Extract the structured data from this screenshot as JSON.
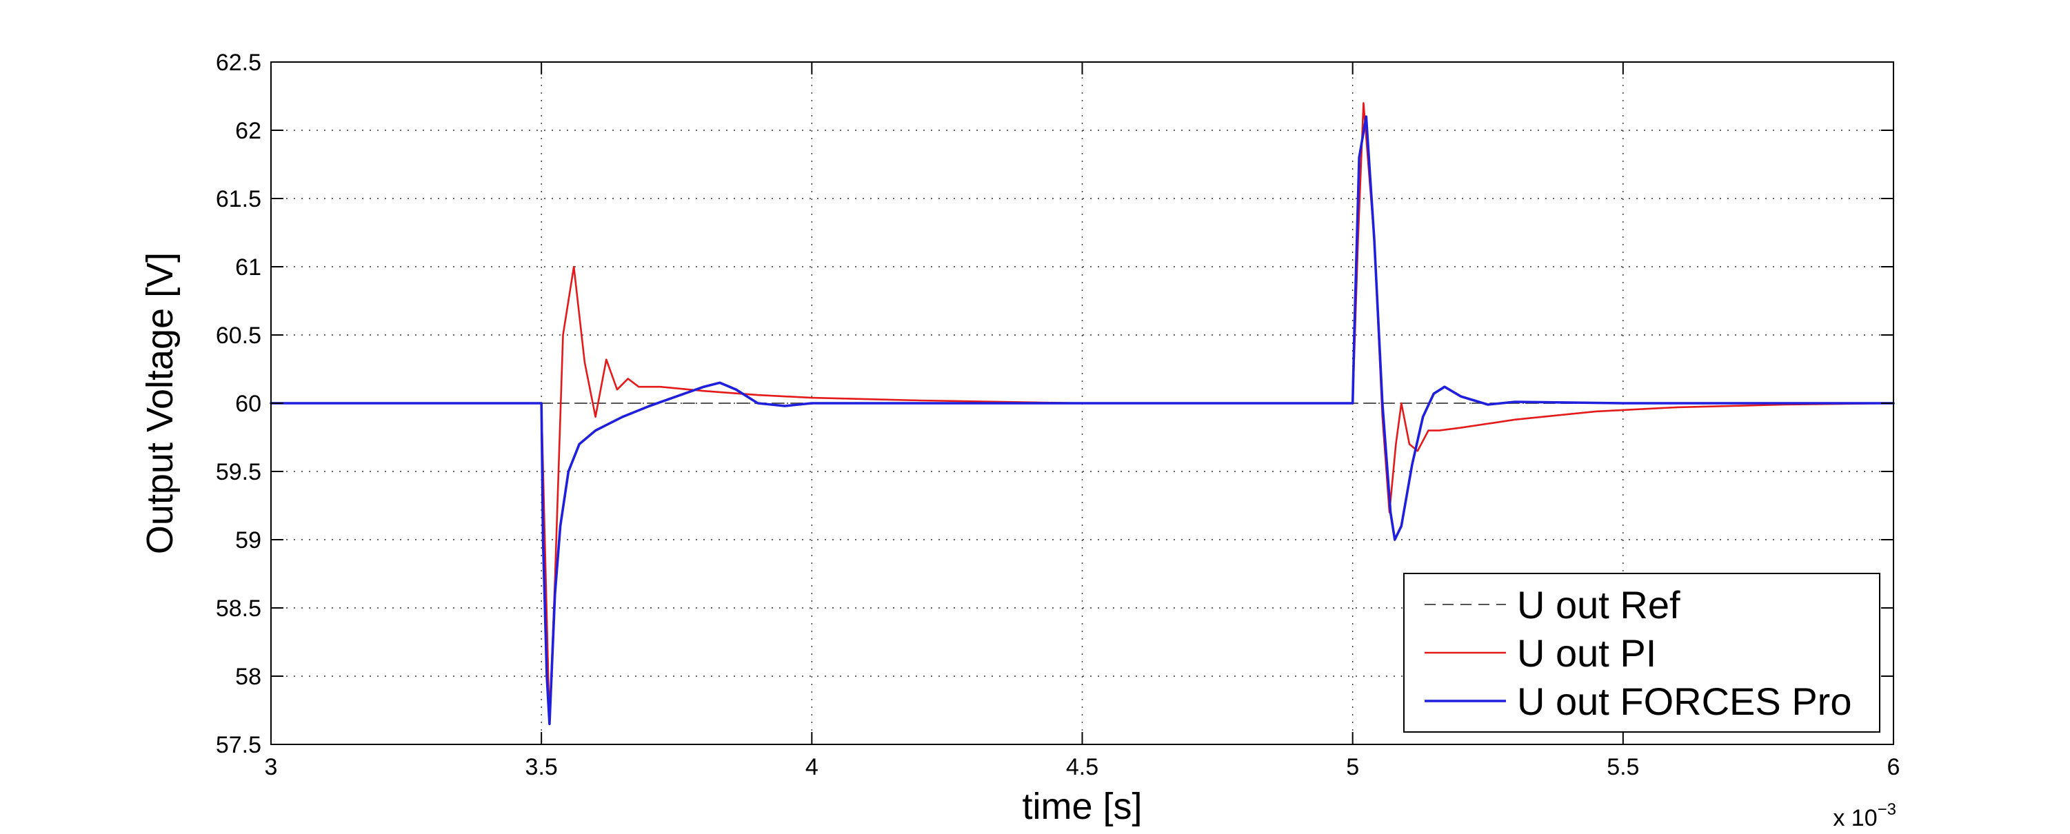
{
  "chart_data": {
    "type": "line",
    "title": "",
    "xlabel": "time [s]",
    "ylabel": "Output Voltage [V]",
    "x_multiplier_label": {
      "base": "x 10",
      "exponent": "−3"
    },
    "xlim": [
      3,
      6
    ],
    "ylim": [
      57.5,
      62.5
    ],
    "xticks": [
      "3",
      "3.5",
      "4",
      "4.5",
      "5",
      "5.5",
      "6"
    ],
    "yticks": [
      "57.5",
      "58",
      "58.5",
      "59",
      "59.5",
      "60",
      "60.5",
      "61",
      "61.5",
      "62",
      "62.5"
    ],
    "grid": true,
    "legend_position": "bottom-right",
    "series": [
      {
        "name": "U out Ref",
        "color": "#555555",
        "style": "dashed",
        "x": [
          3.0,
          6.0
        ],
        "y": [
          60.0,
          60.0
        ]
      },
      {
        "name": "U out PI",
        "color": "#e41a1a",
        "style": "solid",
        "x": [
          3.0,
          3.5,
          3.505,
          3.515,
          3.525,
          3.54,
          3.56,
          3.58,
          3.6,
          3.62,
          3.64,
          3.66,
          3.68,
          3.72,
          3.8,
          3.9,
          4.0,
          4.2,
          4.5,
          5.0,
          5.01,
          5.02,
          5.04,
          5.055,
          5.068,
          5.08,
          5.09,
          5.105,
          5.12,
          5.14,
          5.16,
          5.2,
          5.3,
          5.45,
          5.6,
          5.8,
          6.0
        ],
        "y": [
          60.0,
          60.0,
          59.2,
          57.65,
          58.7,
          60.5,
          61.0,
          60.3,
          59.9,
          60.32,
          60.1,
          60.18,
          60.12,
          60.12,
          60.09,
          60.06,
          60.04,
          60.02,
          60.0,
          60.0,
          61.2,
          62.2,
          61.2,
          59.9,
          59.2,
          59.7,
          60.0,
          59.7,
          59.65,
          59.8,
          59.8,
          59.82,
          59.88,
          59.94,
          59.97,
          59.99,
          60.0
        ]
      },
      {
        "name": "U out FORCES Pro",
        "color": "#1f1fdc",
        "style": "solid",
        "x": [
          3.0,
          3.5,
          3.503,
          3.51,
          3.515,
          3.525,
          3.535,
          3.55,
          3.57,
          3.6,
          3.65,
          3.7,
          3.75,
          3.8,
          3.83,
          3.86,
          3.9,
          3.95,
          4.0,
          4.5,
          5.0,
          5.003,
          5.012,
          5.025,
          5.04,
          5.055,
          5.07,
          5.078,
          5.09,
          5.11,
          5.13,
          5.15,
          5.17,
          5.2,
          5.25,
          5.3,
          5.5,
          6.0
        ],
        "y": [
          60.0,
          60.0,
          59.0,
          58.0,
          57.65,
          58.6,
          59.1,
          59.5,
          59.7,
          59.8,
          59.9,
          59.98,
          60.05,
          60.12,
          60.15,
          60.1,
          60.0,
          59.98,
          60.0,
          60.0,
          60.0,
          60.5,
          61.8,
          62.1,
          61.2,
          60.0,
          59.2,
          59.0,
          59.1,
          59.55,
          59.9,
          60.07,
          60.12,
          60.05,
          59.99,
          60.01,
          60.0,
          60.0
        ]
      }
    ]
  }
}
